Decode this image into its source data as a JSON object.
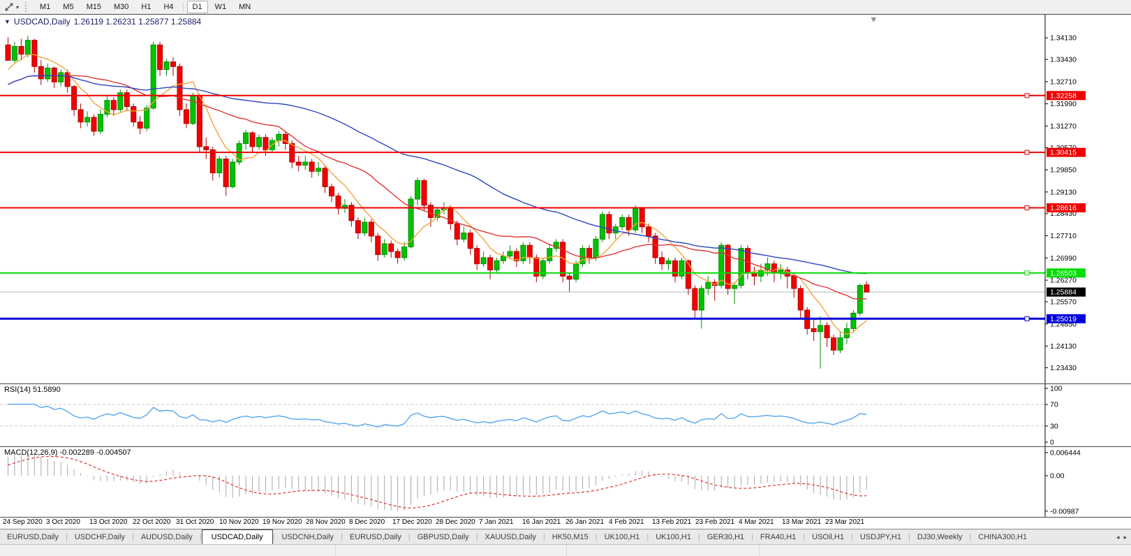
{
  "toolbar": {
    "cursor_tool_name": "cursor-crosshair-tool",
    "timeframes": [
      "M1",
      "M5",
      "M15",
      "M30",
      "H1",
      "H4",
      "D1",
      "W1",
      "MN"
    ],
    "active_timeframe": "D1",
    "group_break_before": "D1"
  },
  "header": {
    "collapse_arrow": "▼",
    "symbol_title": "USDCAD,Daily",
    "ohlc": "1.26119 1.26231 1.25877 1.25884"
  },
  "chart_data": {
    "type": "candlestick",
    "symbol": "USDCAD",
    "timeframe": "Daily",
    "title": "USDCAD,Daily",
    "ohlc_display": {
      "open": "1.26119",
      "high": "1.26231",
      "low": "1.25877",
      "close": "1.25884"
    },
    "y_ticks": [
      "1.34130",
      "1.33430",
      "1.32710",
      "1.31990",
      "1.31270",
      "1.30570",
      "1.29850",
      "1.29130",
      "1.28430",
      "1.27710",
      "1.26990",
      "1.26270",
      "1.25570",
      "1.24850",
      "1.24130",
      "1.23430"
    ],
    "y_range": [
      1.231,
      1.347
    ],
    "x_labels": [
      "24 Sep 2020",
      "3 Oct 2020",
      "13 Oct 2020",
      "22 Oct 2020",
      "31 Oct 2020",
      "10 Nov 2020",
      "19 Nov 2020",
      "28 Nov 2020",
      "8 Dec 2020",
      "17 Dec 2020",
      "28 Dec 2020",
      "7 Jan 2021",
      "16 Jan 2021",
      "26 Jan 2021",
      "4 Feb 2021",
      "13 Feb 2021",
      "23 Feb 2021",
      "4 Mar 2021",
      "13 Mar 2021",
      "23 Mar 2021"
    ],
    "hlines": [
      {
        "value": 1.32258,
        "label": "1.32258",
        "color": "#ee0000",
        "width": 2
      },
      {
        "value": 1.30415,
        "label": "1.30415",
        "color": "#ee0000",
        "width": 2
      },
      {
        "value": 1.28616,
        "label": "1.28616",
        "color": "#ee0000",
        "width": 2
      },
      {
        "value": 1.26503,
        "label": "1.26503",
        "color": "#00dd00",
        "width": 2
      },
      {
        "value": 1.25019,
        "label": "1.25019",
        "color": "#0000dd",
        "width": 3
      }
    ],
    "current_price": {
      "value": 1.25884,
      "label": "1.25884",
      "label_bg": "#000000",
      "line_color": "#b8b8b8"
    },
    "up_color": "#00c200",
    "down_color": "#f20000",
    "moving_averages": [
      {
        "name": "ma-fast",
        "period": 7,
        "color": "#f2a33c"
      },
      {
        "name": "ma-mid",
        "period": 20,
        "color": "#e03535"
      },
      {
        "name": "ma-slow",
        "period": 50,
        "color": "#2c46c0"
      }
    ],
    "warmup_closes": [
      1.314,
      1.316,
      1.319,
      1.322,
      1.324,
      1.327,
      1.33,
      1.332,
      1.334,
      1.336
    ],
    "candles": [
      [
        1.339,
        1.3415,
        1.3345,
        1.334
      ],
      [
        1.334,
        1.34,
        1.333,
        1.3385
      ],
      [
        1.3385,
        1.341,
        1.334,
        1.336
      ],
      [
        1.336,
        1.342,
        1.335,
        1.3405
      ],
      [
        1.3405,
        1.341,
        1.33,
        1.332
      ],
      [
        1.332,
        1.334,
        1.326,
        1.328
      ],
      [
        1.328,
        1.333,
        1.327,
        1.3315
      ],
      [
        1.3315,
        1.332,
        1.325,
        1.327
      ],
      [
        1.327,
        1.331,
        1.3255,
        1.33
      ],
      [
        1.33,
        1.331,
        1.3235,
        1.3255
      ],
      [
        1.3255,
        1.326,
        1.316,
        1.318
      ],
      [
        1.318,
        1.32,
        1.312,
        1.314
      ],
      [
        1.314,
        1.3175,
        1.3125,
        1.3155
      ],
      [
        1.3155,
        1.3165,
        1.3095,
        1.311
      ],
      [
        1.311,
        1.318,
        1.31,
        1.3165
      ],
      [
        1.3165,
        1.3225,
        1.3155,
        1.321
      ],
      [
        1.321,
        1.322,
        1.316,
        1.318
      ],
      [
        1.318,
        1.3245,
        1.317,
        1.3235
      ],
      [
        1.3235,
        1.3245,
        1.3175,
        1.319
      ],
      [
        1.319,
        1.32,
        1.3125,
        1.314
      ],
      [
        1.314,
        1.316,
        1.31,
        1.312
      ],
      [
        1.312,
        1.3195,
        1.311,
        1.3185
      ],
      [
        1.3185,
        1.34,
        1.318,
        1.339
      ],
      [
        1.339,
        1.34,
        1.329,
        1.331
      ],
      [
        1.331,
        1.3345,
        1.329,
        1.3335
      ],
      [
        1.3335,
        1.335,
        1.329,
        1.332
      ],
      [
        1.332,
        1.333,
        1.316,
        1.318
      ],
      [
        1.318,
        1.32,
        1.312,
        1.3135
      ],
      [
        1.3135,
        1.3235,
        1.313,
        1.3225
      ],
      [
        1.3225,
        1.323,
        1.304,
        1.306
      ],
      [
        1.306,
        1.309,
        1.302,
        1.305
      ],
      [
        1.305,
        1.306,
        1.295,
        1.2975
      ],
      [
        1.2975,
        1.303,
        1.296,
        1.302
      ],
      [
        1.302,
        1.303,
        1.29,
        1.293
      ],
      [
        1.293,
        1.302,
        1.2925,
        1.301
      ],
      [
        1.301,
        1.308,
        1.3,
        1.307
      ],
      [
        1.307,
        1.3115,
        1.305,
        1.3105
      ],
      [
        1.3105,
        1.311,
        1.304,
        1.306
      ],
      [
        1.306,
        1.31,
        1.305,
        1.309
      ],
      [
        1.309,
        1.31,
        1.303,
        1.305
      ],
      [
        1.305,
        1.309,
        1.304,
        1.308
      ],
      [
        1.308,
        1.311,
        1.306,
        1.31
      ],
      [
        1.31,
        1.311,
        1.305,
        1.307
      ],
      [
        1.307,
        1.308,
        1.299,
        1.301
      ],
      [
        1.301,
        1.303,
        1.298,
        1.3
      ],
      [
        1.3,
        1.303,
        1.2985,
        1.301
      ],
      [
        1.301,
        1.302,
        1.296,
        1.298
      ],
      [
        1.298,
        1.301,
        1.2965,
        1.299
      ],
      [
        1.299,
        1.3,
        1.291,
        1.293
      ],
      [
        1.293,
        1.294,
        1.288,
        1.29
      ],
      [
        1.29,
        1.291,
        1.284,
        1.286
      ],
      [
        1.286,
        1.289,
        1.2845,
        1.287
      ],
      [
        1.287,
        1.288,
        1.28,
        1.282
      ],
      [
        1.282,
        1.283,
        1.276,
        1.278
      ],
      [
        1.278,
        1.283,
        1.277,
        1.2815
      ],
      [
        1.2815,
        1.2825,
        1.275,
        1.277
      ],
      [
        1.277,
        1.278,
        1.269,
        1.271
      ],
      [
        1.271,
        1.276,
        1.27,
        1.2745
      ],
      [
        1.2745,
        1.2755,
        1.27,
        1.272
      ],
      [
        1.272,
        1.273,
        1.268,
        1.27
      ],
      [
        1.27,
        1.275,
        1.269,
        1.2735
      ],
      [
        1.2735,
        1.29,
        1.273,
        1.289
      ],
      [
        1.289,
        1.296,
        1.287,
        1.295
      ],
      [
        1.295,
        1.2955,
        1.285,
        1.287
      ],
      [
        1.287,
        1.288,
        1.28,
        1.283
      ],
      [
        1.283,
        1.2865,
        1.282,
        1.2855
      ],
      [
        1.2855,
        1.288,
        1.284,
        1.286
      ],
      [
        1.286,
        1.287,
        1.279,
        1.281
      ],
      [
        1.281,
        1.282,
        1.274,
        1.276
      ],
      [
        1.276,
        1.28,
        1.275,
        1.278
      ],
      [
        1.278,
        1.279,
        1.271,
        1.273
      ],
      [
        1.273,
        1.274,
        1.266,
        1.268
      ],
      [
        1.268,
        1.272,
        1.267,
        1.27
      ],
      [
        1.27,
        1.271,
        1.263,
        1.266
      ],
      [
        1.266,
        1.27,
        1.265,
        1.269
      ],
      [
        1.269,
        1.272,
        1.268,
        1.2705
      ],
      [
        1.2705,
        1.274,
        1.2695,
        1.272
      ],
      [
        1.272,
        1.273,
        1.267,
        1.269
      ],
      [
        1.269,
        1.275,
        1.268,
        1.274
      ],
      [
        1.274,
        1.275,
        1.268,
        1.27
      ],
      [
        1.27,
        1.271,
        1.262,
        1.264
      ],
      [
        1.264,
        1.27,
        1.263,
        1.269
      ],
      [
        1.269,
        1.274,
        1.268,
        1.273
      ],
      [
        1.273,
        1.276,
        1.272,
        1.275
      ],
      [
        1.275,
        1.276,
        1.262,
        1.264
      ],
      [
        1.264,
        1.265,
        1.259,
        1.263
      ],
      [
        1.263,
        1.269,
        1.262,
        1.268
      ],
      [
        1.268,
        1.274,
        1.267,
        1.273
      ],
      [
        1.273,
        1.274,
        1.268,
        1.27
      ],
      [
        1.27,
        1.277,
        1.269,
        1.276
      ],
      [
        1.276,
        1.285,
        1.275,
        1.284
      ],
      [
        1.284,
        1.285,
        1.276,
        1.278
      ],
      [
        1.278,
        1.281,
        1.276,
        1.28
      ],
      [
        1.28,
        1.284,
        1.279,
        1.283
      ],
      [
        1.283,
        1.284,
        1.277,
        1.279
      ],
      [
        1.279,
        1.287,
        1.278,
        1.286
      ],
      [
        1.286,
        1.2865,
        1.278,
        1.28
      ],
      [
        1.28,
        1.281,
        1.275,
        1.277
      ],
      [
        1.277,
        1.278,
        1.268,
        1.27
      ],
      [
        1.27,
        1.272,
        1.266,
        1.268
      ],
      [
        1.268,
        1.27,
        1.266,
        1.269
      ],
      [
        1.269,
        1.27,
        1.262,
        1.264
      ],
      [
        1.264,
        1.27,
        1.263,
        1.269
      ],
      [
        1.269,
        1.2695,
        1.258,
        1.26
      ],
      [
        1.26,
        1.261,
        1.25,
        1.253
      ],
      [
        1.253,
        1.261,
        1.247,
        1.26
      ],
      [
        1.26,
        1.264,
        1.258,
        1.262
      ],
      [
        1.262,
        1.263,
        1.256,
        1.261
      ],
      [
        1.261,
        1.275,
        1.26,
        1.274
      ],
      [
        1.274,
        1.2745,
        1.258,
        1.26
      ],
      [
        1.26,
        1.262,
        1.255,
        1.261
      ],
      [
        1.261,
        1.274,
        1.26,
        1.273
      ],
      [
        1.273,
        1.274,
        1.263,
        1.265
      ],
      [
        1.265,
        1.267,
        1.261,
        1.264
      ],
      [
        1.264,
        1.268,
        1.262,
        1.266
      ],
      [
        1.266,
        1.27,
        1.264,
        1.268
      ],
      [
        1.268,
        1.269,
        1.262,
        1.265
      ],
      [
        1.265,
        1.268,
        1.263,
        1.266
      ],
      [
        1.266,
        1.267,
        1.26,
        1.264
      ],
      [
        1.264,
        1.265,
        1.257,
        1.26
      ],
      [
        1.26,
        1.261,
        1.25,
        1.253
      ],
      [
        1.253,
        1.254,
        1.245,
        1.247
      ],
      [
        1.247,
        1.25,
        1.243,
        1.246
      ],
      [
        1.246,
        1.251,
        1.234,
        1.248
      ],
      [
        1.248,
        1.249,
        1.241,
        1.244
      ],
      [
        1.244,
        1.245,
        1.2385,
        1.24
      ],
      [
        1.24,
        1.246,
        1.239,
        1.244
      ],
      [
        1.244,
        1.249,
        1.242,
        1.247
      ],
      [
        1.247,
        1.253,
        1.246,
        1.252
      ],
      [
        1.252,
        1.2615,
        1.251,
        1.261
      ],
      [
        1.26119,
        1.26231,
        1.25877,
        1.25884
      ]
    ]
  },
  "rsi_panel": {
    "label": "RSI(14) 51.5890",
    "period": 14,
    "current": 51.589,
    "ticks": [
      "100",
      "70",
      "30",
      "0"
    ],
    "tick_values": [
      100,
      70,
      30,
      0
    ],
    "levels": [
      70,
      30
    ],
    "line_color": "#55a5f2"
  },
  "macd_panel": {
    "label": "MACD(12,26,9) -0.002289 -0.004507",
    "fast": 12,
    "slow": 26,
    "signal": 9,
    "current_macd": -0.002289,
    "current_signal": -0.004507,
    "ticks": [
      "0.006444",
      "0.00",
      "-0.00987"
    ],
    "tick_values": [
      0.006444,
      0,
      -0.00987
    ],
    "range": [
      -0.0105,
      0.007
    ],
    "histogram_color": "#a8a8a8",
    "signal_color": "#e03030"
  },
  "tabs": {
    "items": [
      "EURUSD,Daily",
      "USDCHF,Daily",
      "AUDUSD,Daily",
      "USDCAD,Daily",
      "USDCNH,Daily",
      "EURUSD,Daily",
      "GBPUSD,Daily",
      "XAUUSD,Daily",
      "HK50,M15",
      "UK100,H1",
      "UK100,H1",
      "GER30,H1",
      "FRA40,H1",
      "USOil,H1",
      "USDJPY,H1",
      "DJ30,Weekly",
      "CHINA300,H1"
    ],
    "active_index": 3,
    "scroll_left": "◂",
    "scroll_right": "▸"
  }
}
